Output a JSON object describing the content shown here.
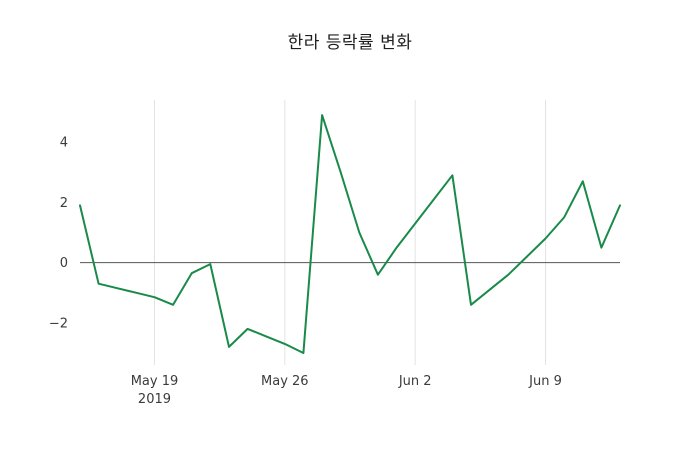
{
  "title": "한라 등락률 변화",
  "chart_data": {
    "type": "line",
    "series_name": "등락률",
    "x": [
      "2019-05-15",
      "2019-05-16",
      "2019-05-17",
      "2019-05-18",
      "2019-05-19",
      "2019-05-20",
      "2019-05-21",
      "2019-05-22",
      "2019-05-23",
      "2019-05-24",
      "2019-05-25",
      "2019-05-26",
      "2019-05-27",
      "2019-05-28",
      "2019-05-29",
      "2019-05-30",
      "2019-05-31",
      "2019-06-01",
      "2019-06-02",
      "2019-06-03",
      "2019-06-04",
      "2019-06-05",
      "2019-06-06",
      "2019-06-07",
      "2019-06-08",
      "2019-06-09",
      "2019-06-10",
      "2019-06-11",
      "2019-06-12",
      "2019-06-13"
    ],
    "values": [
      1.9,
      -0.7,
      -0.85,
      -1.0,
      -1.15,
      -1.4,
      -0.35,
      -0.05,
      -2.8,
      -2.2,
      -2.45,
      -2.7,
      -3.0,
      4.9,
      3.0,
      1.0,
      -0.4,
      0.5,
      1.3,
      2.1,
      2.9,
      -1.4,
      -0.9,
      -0.4,
      0.2,
      0.8,
      1.5,
      2.7,
      0.5,
      1.9
    ],
    "x_ticks": [
      {
        "date": "2019-05-19",
        "label": "May 19",
        "sublabel": "2019"
      },
      {
        "date": "2019-05-26",
        "label": "May 26",
        "sublabel": ""
      },
      {
        "date": "2019-06-02",
        "label": "Jun 2",
        "sublabel": ""
      },
      {
        "date": "2019-06-09",
        "label": "Jun 9",
        "sublabel": ""
      }
    ],
    "y_ticks": [
      -2,
      0,
      2,
      4
    ],
    "ylim": [
      -3.4,
      5.4
    ],
    "line_color": "#1a8a4a",
    "zero_line_color": "#555555",
    "grid_color": "#e3e3e3",
    "grid": "vertical",
    "legend": "none",
    "background": "#ffffff"
  }
}
